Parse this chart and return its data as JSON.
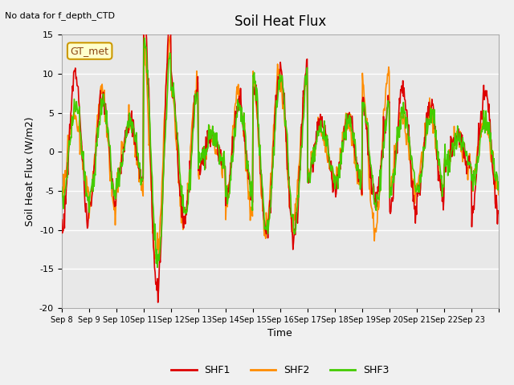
{
  "title": "Soil Heat Flux",
  "ylabel": "Soil Heat Flux (W/m2)",
  "xlabel": "Time",
  "top_left_text": "No data for f_depth_CTD",
  "annotation_box": "GT_met",
  "ylim": [
    -20,
    15
  ],
  "yticks": [
    -20,
    -15,
    -10,
    -5,
    0,
    5,
    10,
    15
  ],
  "x_tick_labels": [
    "Sep 8",
    "Sep 9",
    "Sep 10",
    "Sep 11",
    "Sep 12",
    "Sep 13",
    "Sep 14",
    "Sep 15",
    "Sep 16",
    "Sep 17",
    "Sep 18",
    "Sep 19",
    "Sep 20",
    "Sep 21",
    "Sep 22",
    "Sep 23"
  ],
  "colors": {
    "SHF1": "#dd0000",
    "SHF2": "#ff8c00",
    "SHF3": "#44cc00",
    "background": "#e8e8e8",
    "grid": "#ffffff"
  },
  "legend": [
    "SHF1",
    "SHF2",
    "SHF3"
  ],
  "background_color": "#f0f0f0",
  "amp1": [
    10,
    7,
    4,
    -18,
    -9,
    2,
    6,
    -10,
    -11,
    4,
    5,
    -6,
    8,
    6,
    2,
    8
  ],
  "amp2": [
    5,
    8,
    4,
    -14,
    -9,
    2,
    8,
    -10,
    -9,
    3,
    4,
    -10,
    5,
    5,
    2,
    4
  ],
  "amp3": [
    6,
    6,
    4,
    -14,
    -8,
    2,
    6,
    -10,
    -10,
    3,
    4,
    -6,
    5,
    5,
    2,
    4
  ],
  "n_days": 16,
  "pts_per_day": 48
}
